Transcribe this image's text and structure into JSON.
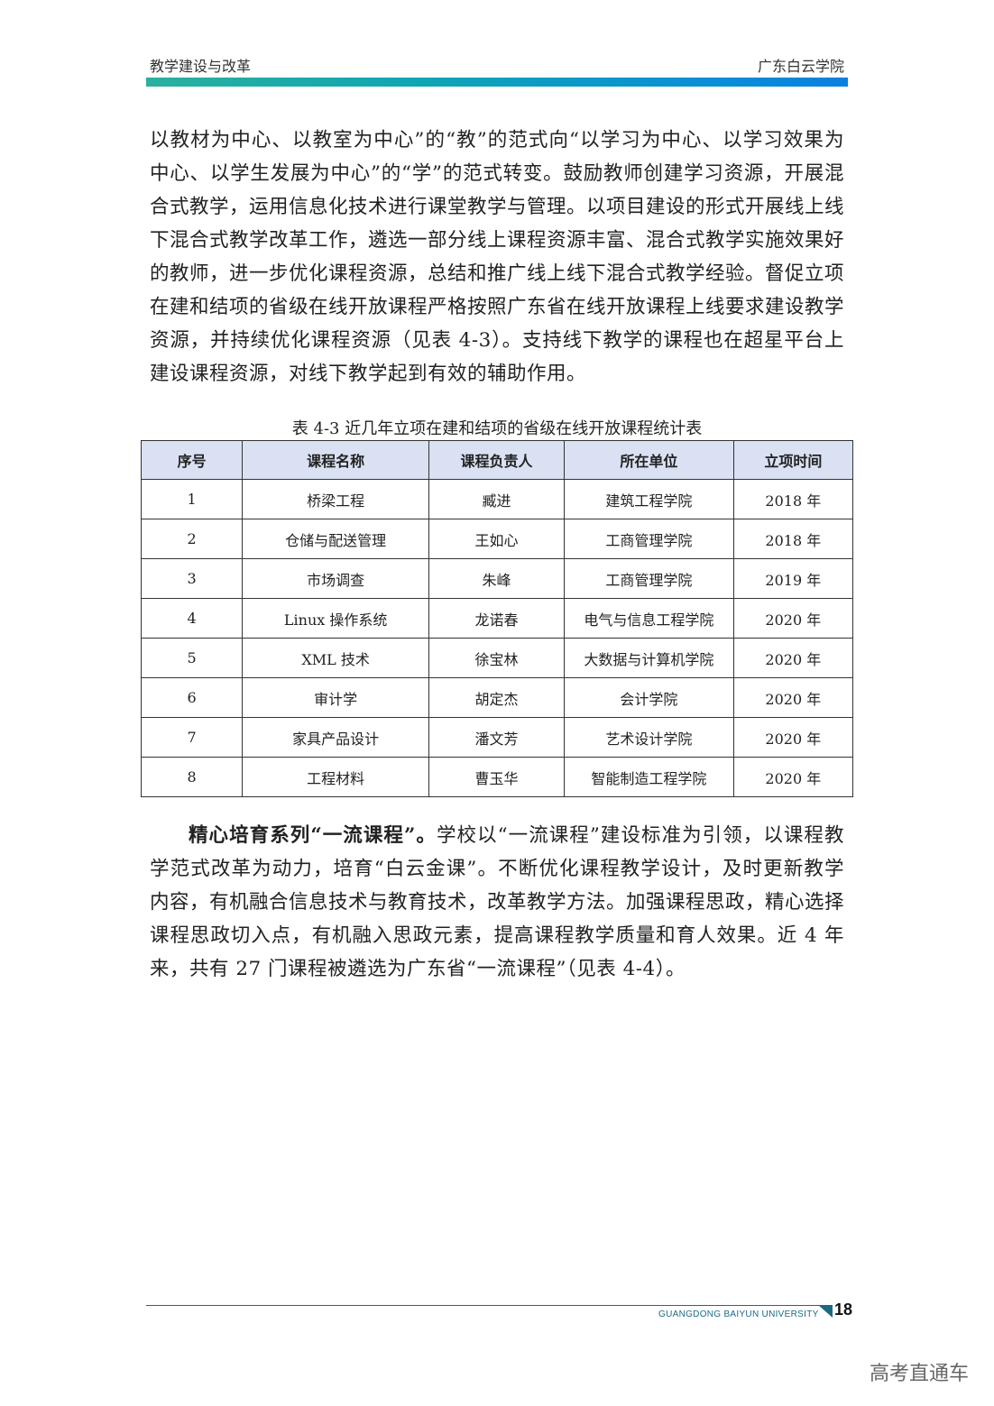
{
  "header": {
    "left": "教学建设与改革",
    "right": "广东白云学院"
  },
  "paragraph1": "以教材为中心、以教室为中心”的“教”的范式向“以学习为中心、以学习效果为中心、以学生发展为中心”的“学”的范式转变。鼓励教师创建学习资源，开展混合式教学，运用信息化技术进行课堂教学与管理。以项目建设的形式开展线上线下混合式教学改革工作，遴选一部分线上课程资源丰富、混合式教学实施效果好的教师，进一步优化课程资源，总结和推广线上线下混合式教学经验。督促立项在建和结项的省级在线开放课程严格按照广东省在线开放课程上线要求建设教学资源，并持续优化课程资源（见表 4-3）。支持线下教学的课程也在超星平台上建设课程资源，对线下教学起到有效的辅助作用。",
  "table": {
    "caption": "表 4-3 近几年立项在建和结项的省级在线开放课程统计表",
    "headers": [
      "序号",
      "课程名称",
      "课程负责人",
      "所在单位",
      "立项时间"
    ],
    "rows": [
      [
        "1",
        "桥梁工程",
        "臧进",
        "建筑工程学院",
        "2018 年"
      ],
      [
        "2",
        "仓储与配送管理",
        "王如心",
        "工商管理学院",
        "2018 年"
      ],
      [
        "3",
        "市场调查",
        "朱峰",
        "工商管理学院",
        "2019 年"
      ],
      [
        "4",
        "Linux 操作系统",
        "龙诺春",
        "电气与信息工程学院",
        "2020 年"
      ],
      [
        "5",
        "XML 技术",
        "徐宝林",
        "大数据与计算机学院",
        "2020 年"
      ],
      [
        "6",
        "审计学",
        "胡定杰",
        "会计学院",
        "2020 年"
      ],
      [
        "7",
        "家具产品设计",
        "潘文芳",
        "艺术设计学院",
        "2020 年"
      ],
      [
        "8",
        "工程材料",
        "曹玉华",
        "智能制造工程学院",
        "2020 年"
      ]
    ]
  },
  "paragraph2": {
    "bold": "精心培育系列“一流课程”。",
    "text": "学校以“一流课程”建设标准为引领，以课程教学范式改革为动力，培育“白云金课”。不断优化课程教学设计，及时更新教学内容，有机融合信息技术与教育技术，改革教学方法。加强课程思政，精心选择课程思政切入点，有机融入思政元素，提高课程教学质量和育人效果。近 4 年来，共有 27 门课程被遴选为广东省“一流课程”（见表 4-4）。"
  },
  "footer": {
    "university": "GUANGDONG BAIYUN UNIVERSITY",
    "page": "18"
  },
  "watermark": "高考直通车",
  "colors": {
    "header_bar_start": "#2ab09e",
    "header_bar_end": "#0a7fe0",
    "table_header_bg": "#d9e1f2",
    "footer": "#1b6a85"
  }
}
